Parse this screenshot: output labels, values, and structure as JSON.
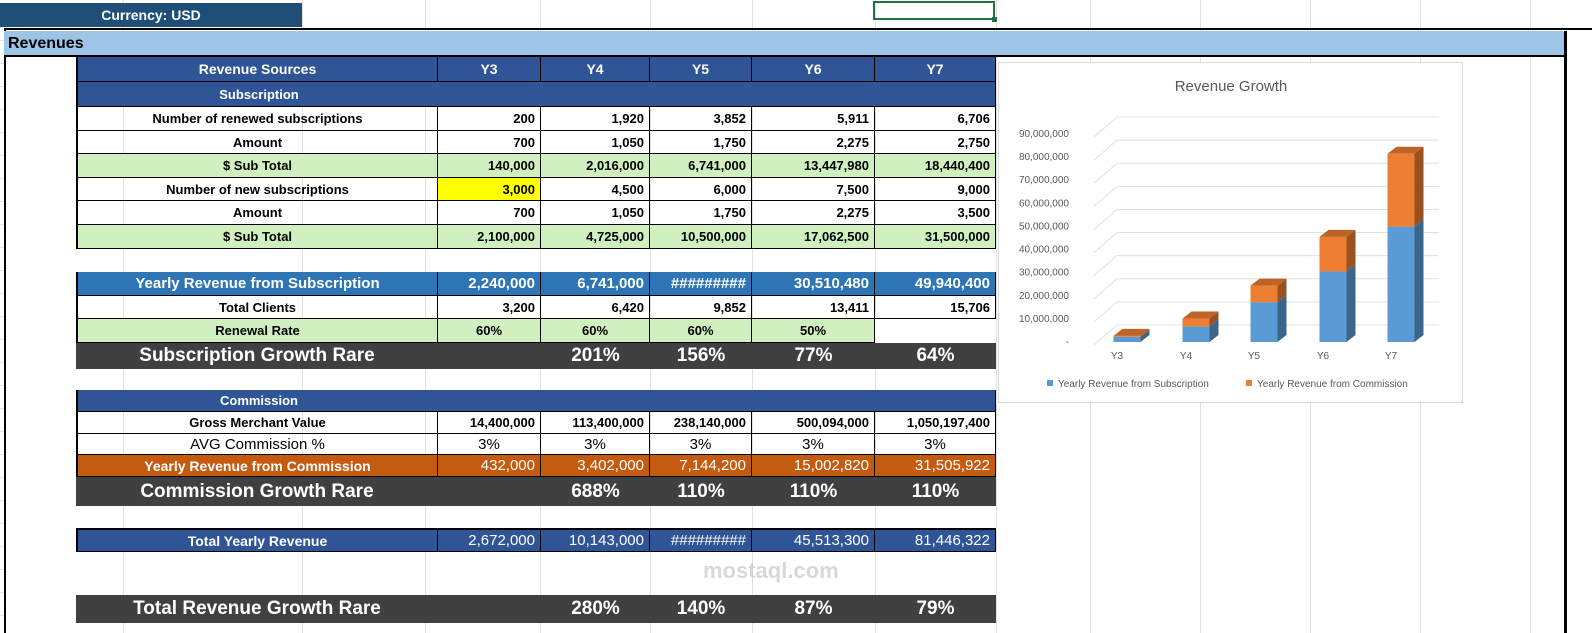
{
  "currency_label": "Currency: USD",
  "section_title": "Revenues",
  "header": {
    "label": "Revenue Sources",
    "years": [
      "Y3",
      "Y4",
      "Y5",
      "Y6",
      "Y7"
    ]
  },
  "subscription": {
    "title": "Subscription",
    "rows": [
      {
        "label": "Number of renewed subscriptions",
        "values": [
          "200",
          "1,920",
          "3,852",
          "5,911",
          "6,706"
        ],
        "style": "white"
      },
      {
        "label": "Amount",
        "values": [
          "700",
          "1,050",
          "1,750",
          "2,275",
          "2,750"
        ],
        "style": "white"
      },
      {
        "label": "$  Sub Total",
        "values": [
          "140,000",
          "2,016,000",
          "6,741,000",
          "13,447,980",
          "18,440,400"
        ],
        "style": "green"
      },
      {
        "label": "Number of new subscriptions",
        "values": [
          "3,000",
          "4,500",
          "6,000",
          "7,500",
          "9,000"
        ],
        "style": "white"
      },
      {
        "label": "Amount",
        "values": [
          "700",
          "1,050",
          "1,750",
          "2,275",
          "3,500"
        ],
        "style": "white"
      },
      {
        "label": "$  Sub Total",
        "values": [
          "2,100,000",
          "4,725,000",
          "10,500,000",
          "17,062,500",
          "31,500,000"
        ],
        "style": "green"
      }
    ]
  },
  "summary": {
    "yearly_sub": {
      "label": "Yearly Revenue from Subscription",
      "values": [
        "2,240,000",
        "6,741,000",
        "#########",
        "30,510,480",
        "49,940,400"
      ]
    },
    "total_clients": {
      "label": "Total Clients",
      "values": [
        "3,200",
        "6,420",
        "9,852",
        "13,411",
        "15,706"
      ]
    },
    "renewal_rate": {
      "label": "Renewal Rate",
      "values": [
        "60%",
        "60%",
        "60%",
        "50%",
        ""
      ]
    },
    "sub_growth": {
      "label": "Subscription Growth Rare",
      "values": [
        "",
        "201%",
        "156%",
        "77%",
        "64%"
      ]
    }
  },
  "commission": {
    "title": "Commission",
    "gmv": {
      "label": "Gross Merchant Value",
      "values": [
        "14,400,000",
        "113,400,000",
        "238,140,000",
        "500,094,000",
        "1,050,197,400"
      ]
    },
    "avg": {
      "label": "AVG Commission %",
      "values": [
        "3%",
        "3%",
        "3%",
        "3%",
        "3%"
      ]
    },
    "yearly": {
      "label": "Yearly Revenue from Commission",
      "values": [
        "432,000",
        "3,402,000",
        "7,144,200",
        "15,002,820",
        "31,505,922"
      ]
    },
    "growth": {
      "label": "Commission Growth Rare",
      "values": [
        "",
        "688%",
        "110%",
        "110%",
        "110%"
      ]
    }
  },
  "total": {
    "yearly": {
      "label": "Total Yearly Revenue",
      "values": [
        "2,672,000",
        "10,143,000",
        "#########",
        "45,513,300",
        "81,446,322"
      ]
    },
    "growth": {
      "label": "Total Revenue Growth Rare",
      "values": [
        "",
        "280%",
        "140%",
        "87%",
        "79%"
      ]
    }
  },
  "watermark": "mostaql.com",
  "chart_data": {
    "type": "bar",
    "stacked": true,
    "three_d": true,
    "title": "Revenue Growth",
    "categories": [
      "Y3",
      "Y4",
      "Y5",
      "Y6",
      "Y7"
    ],
    "series": [
      {
        "name": "Yearly Revenue from Subscription",
        "values": [
          2240000,
          6741000,
          17241000,
          30510480,
          49940400
        ],
        "color": "#5b9bd5"
      },
      {
        "name": "Yearly Revenue from Commission",
        "values": [
          432000,
          3402000,
          7144200,
          15002820,
          31505922
        ],
        "color": "#ed7d31"
      }
    ],
    "yticks": [
      "-",
      "10,000,000",
      "20,000,000",
      "30,000,000",
      "40,000,000",
      "50,000,000",
      "60,000,000",
      "70,000,000",
      "80,000,000",
      "90,000,000"
    ],
    "ylim": [
      0,
      90000000
    ],
    "grid": true,
    "legend": "bottom"
  }
}
